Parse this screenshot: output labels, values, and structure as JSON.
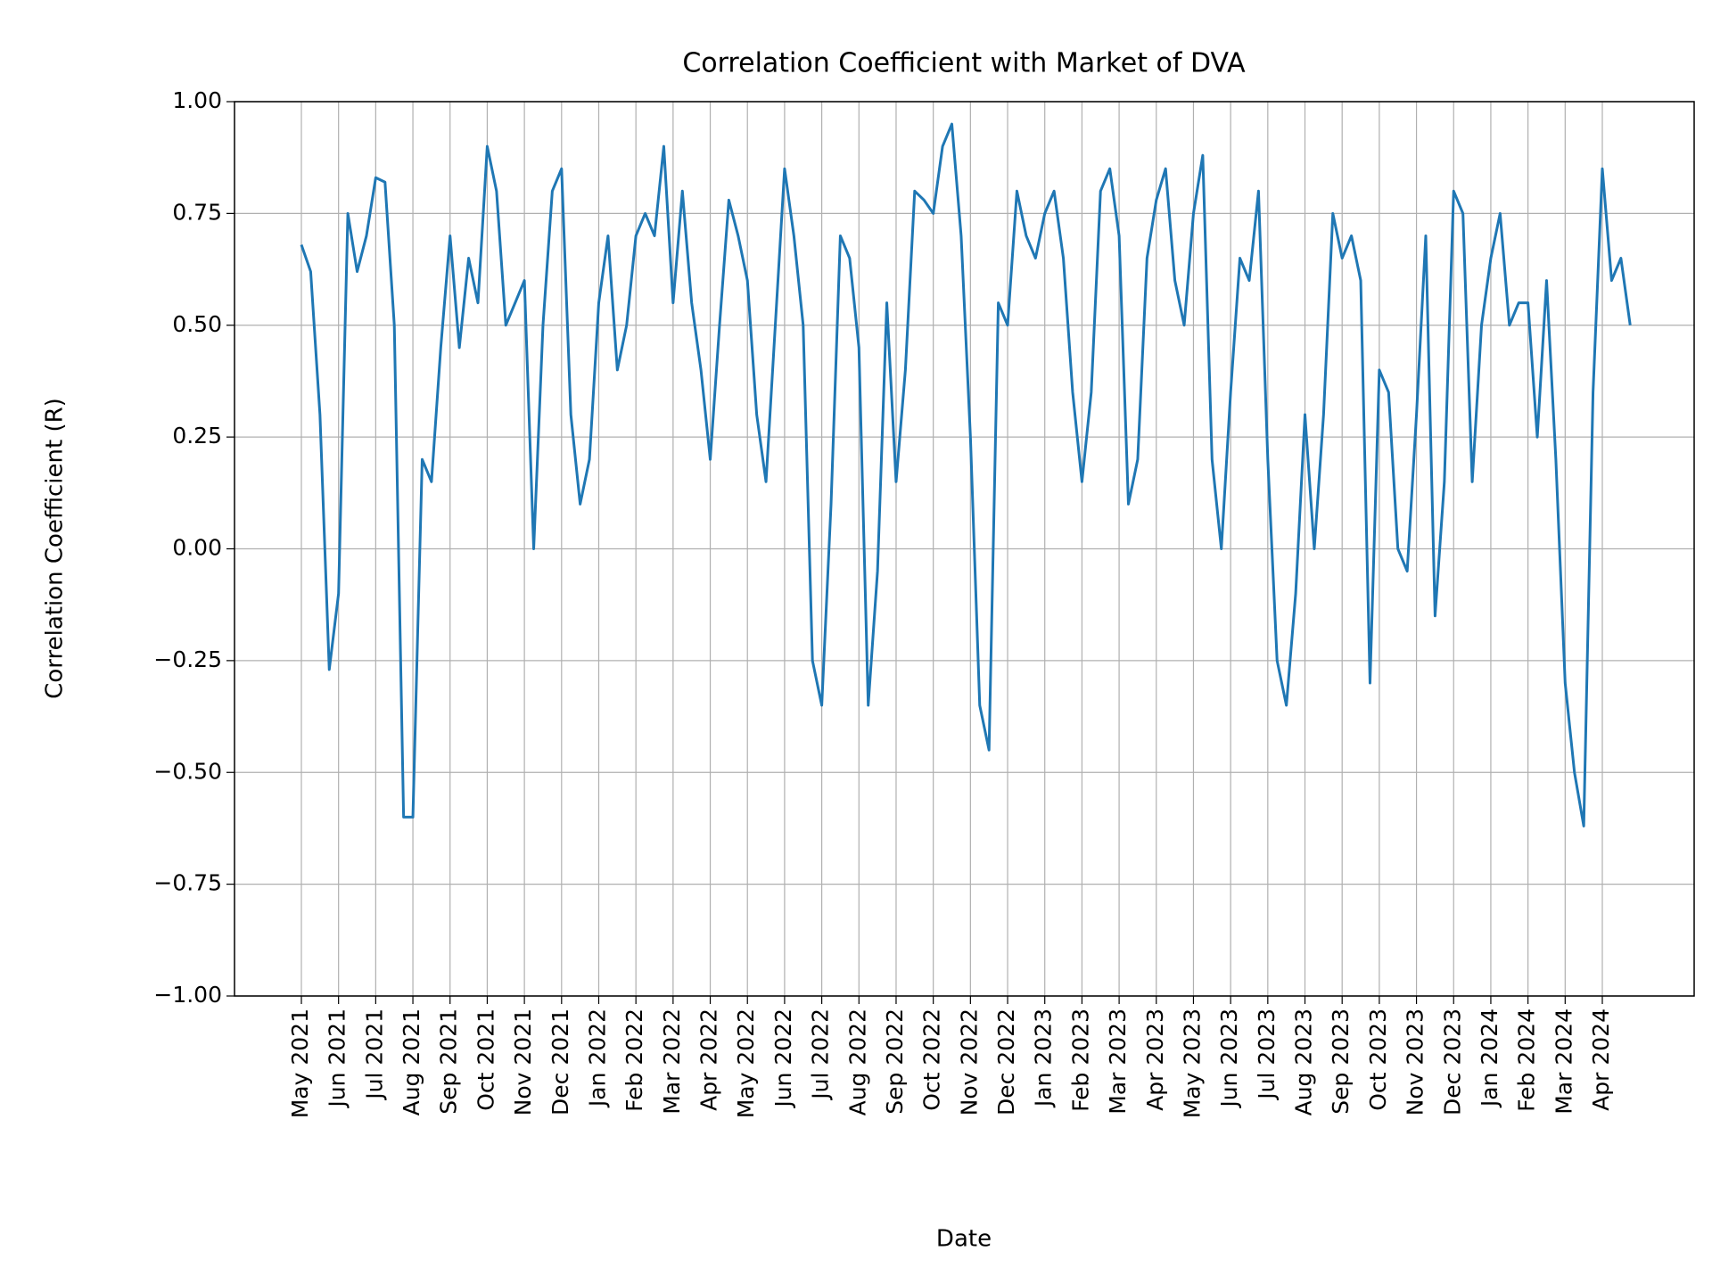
{
  "chart_data": {
    "type": "line",
    "title": "Correlation Coefficient with Market of DVA",
    "xlabel": "Date",
    "ylabel": "Correlation Coefficient (R)",
    "color": "#1f77b4",
    "grid": true,
    "ylim": [
      -1,
      1
    ],
    "yticks": [
      {
        "value": -1,
        "label": "−1.00"
      },
      {
        "value": -0.75,
        "label": "−0.75"
      },
      {
        "value": -0.5,
        "label": "−0.50"
      },
      {
        "value": -0.25,
        "label": "−0.25"
      },
      {
        "value": 0,
        "label": "0.00"
      },
      {
        "value": 0.25,
        "label": "0.25"
      },
      {
        "value": 0.5,
        "label": "0.50"
      },
      {
        "value": 0.75,
        "label": "0.75"
      },
      {
        "value": 1,
        "label": "1.00"
      }
    ],
    "xticks": [
      {
        "value": "2021-05",
        "label": "May 2021"
      },
      {
        "value": "2021-06",
        "label": "Jun 2021"
      },
      {
        "value": "2021-07",
        "label": "Jul 2021"
      },
      {
        "value": "2021-08",
        "label": "Aug 2021"
      },
      {
        "value": "2021-09",
        "label": "Sep 2021"
      },
      {
        "value": "2021-10",
        "label": "Oct 2021"
      },
      {
        "value": "2021-11",
        "label": "Nov 2021"
      },
      {
        "value": "2021-12",
        "label": "Dec 2021"
      },
      {
        "value": "2022-01",
        "label": "Jan 2022"
      },
      {
        "value": "2022-02",
        "label": "Feb 2022"
      },
      {
        "value": "2022-03",
        "label": "Mar 2022"
      },
      {
        "value": "2022-04",
        "label": "Apr 2022"
      },
      {
        "value": "2022-05",
        "label": "May 2022"
      },
      {
        "value": "2022-06",
        "label": "Jun 2022"
      },
      {
        "value": "2022-07",
        "label": "Jul 2022"
      },
      {
        "value": "2022-08",
        "label": "Aug 2022"
      },
      {
        "value": "2022-09",
        "label": "Sep 2022"
      },
      {
        "value": "2022-10",
        "label": "Oct 2022"
      },
      {
        "value": "2022-11",
        "label": "Nov 2022"
      },
      {
        "value": "2022-12",
        "label": "Dec 2022"
      },
      {
        "value": "2023-01",
        "label": "Jan 2023"
      },
      {
        "value": "2023-02",
        "label": "Feb 2023"
      },
      {
        "value": "2023-03",
        "label": "Mar 2023"
      },
      {
        "value": "2023-04",
        "label": "Apr 2023"
      },
      {
        "value": "2023-05",
        "label": "May 2023"
      },
      {
        "value": "2023-06",
        "label": "Jun 2023"
      },
      {
        "value": "2023-07",
        "label": "Jul 2023"
      },
      {
        "value": "2023-08",
        "label": "Aug 2023"
      },
      {
        "value": "2023-09",
        "label": "Sep 2023"
      },
      {
        "value": "2023-10",
        "label": "Oct 2023"
      },
      {
        "value": "2023-11",
        "label": "Nov 2023"
      },
      {
        "value": "2023-12",
        "label": "Dec 2023"
      },
      {
        "value": "2024-01",
        "label": "Jan 2024"
      },
      {
        "value": "2024-02",
        "label": "Feb 2024"
      },
      {
        "value": "2024-03",
        "label": "Mar 2024"
      },
      {
        "value": "2024-04",
        "label": "Apr 2024"
      }
    ],
    "x": [
      "2021-05",
      "2021-05",
      "2021-05",
      "2021-05",
      "2021-06",
      "2021-06",
      "2021-06",
      "2021-06",
      "2021-07",
      "2021-07",
      "2021-07",
      "2021-07",
      "2021-08",
      "2021-08",
      "2021-08",
      "2021-08",
      "2021-09",
      "2021-09",
      "2021-09",
      "2021-09",
      "2021-10",
      "2021-10",
      "2021-10",
      "2021-10",
      "2021-11",
      "2021-11",
      "2021-11",
      "2021-11",
      "2021-12",
      "2021-12",
      "2021-12",
      "2021-12",
      "2022-01",
      "2022-01",
      "2022-01",
      "2022-01",
      "2022-02",
      "2022-02",
      "2022-02",
      "2022-02",
      "2022-03",
      "2022-03",
      "2022-03",
      "2022-03",
      "2022-04",
      "2022-04",
      "2022-04",
      "2022-04",
      "2022-05",
      "2022-05",
      "2022-05",
      "2022-05",
      "2022-06",
      "2022-06",
      "2022-06",
      "2022-06",
      "2022-07",
      "2022-07",
      "2022-07",
      "2022-07",
      "2022-08",
      "2022-08",
      "2022-08",
      "2022-08",
      "2022-09",
      "2022-09",
      "2022-09",
      "2022-09",
      "2022-10",
      "2022-10",
      "2022-10",
      "2022-10",
      "2022-11",
      "2022-11",
      "2022-11",
      "2022-11",
      "2022-12",
      "2022-12",
      "2022-12",
      "2022-12",
      "2023-01",
      "2023-01",
      "2023-01",
      "2023-01",
      "2023-02",
      "2023-02",
      "2023-02",
      "2023-02",
      "2023-03",
      "2023-03",
      "2023-03",
      "2023-03",
      "2023-04",
      "2023-04",
      "2023-04",
      "2023-04",
      "2023-05",
      "2023-05",
      "2023-05",
      "2023-05",
      "2023-06",
      "2023-06",
      "2023-06",
      "2023-06",
      "2023-07",
      "2023-07",
      "2023-07",
      "2023-07",
      "2023-08",
      "2023-08",
      "2023-08",
      "2023-08",
      "2023-09",
      "2023-09",
      "2023-09",
      "2023-09",
      "2023-10",
      "2023-10",
      "2023-10",
      "2023-10",
      "2023-11",
      "2023-11",
      "2023-11",
      "2023-11",
      "2023-12",
      "2023-12",
      "2023-12",
      "2023-12",
      "2024-01",
      "2024-01",
      "2024-01",
      "2024-01",
      "2024-02",
      "2024-02",
      "2024-02",
      "2024-02",
      "2024-03",
      "2024-03",
      "2024-03",
      "2024-03",
      "2024-04",
      "2024-04",
      "2024-04",
      "2024-04"
    ],
    "values": [
      0.68,
      0.62,
      0.3,
      -0.27,
      -0.1,
      0.75,
      0.62,
      0.7,
      0.83,
      0.82,
      0.5,
      -0.6,
      -0.6,
      0.2,
      0.15,
      0.45,
      0.7,
      0.45,
      0.65,
      0.55,
      0.9,
      0.8,
      0.5,
      0.55,
      0.6,
      0.0,
      0.5,
      0.8,
      0.85,
      0.3,
      0.1,
      0.2,
      0.55,
      0.7,
      0.4,
      0.5,
      0.7,
      0.75,
      0.7,
      0.9,
      0.55,
      0.8,
      0.55,
      0.4,
      0.2,
      0.5,
      0.78,
      0.7,
      0.6,
      0.3,
      0.15,
      0.5,
      0.85,
      0.7,
      0.5,
      -0.25,
      -0.35,
      0.1,
      0.7,
      0.65,
      0.45,
      -0.35,
      -0.05,
      0.55,
      0.15,
      0.4,
      0.8,
      0.78,
      0.75,
      0.9,
      0.95,
      0.7,
      0.25,
      -0.35,
      -0.45,
      0.55,
      0.5,
      0.8,
      0.7,
      0.65,
      0.75,
      0.8,
      0.65,
      0.35,
      0.15,
      0.35,
      0.8,
      0.85,
      0.7,
      0.1,
      0.2,
      0.65,
      0.78,
      0.85,
      0.6,
      0.5,
      0.75,
      0.88,
      0.2,
      0.0,
      0.35,
      0.65,
      0.6,
      0.8,
      0.2,
      -0.25,
      -0.35,
      -0.1,
      0.3,
      0.0,
      0.3,
      0.75,
      0.65,
      0.7,
      0.6,
      -0.3,
      0.4,
      0.35,
      0.0,
      -0.05,
      0.3,
      0.7,
      -0.15,
      0.15,
      0.8,
      0.75,
      0.15,
      0.5,
      0.65,
      0.75,
      0.5,
      0.55,
      0.55,
      0.25,
      0.6,
      0.2,
      -0.3,
      -0.5,
      -0.62,
      0.35,
      0.85,
      0.6,
      0.65,
      0.5
    ]
  }
}
